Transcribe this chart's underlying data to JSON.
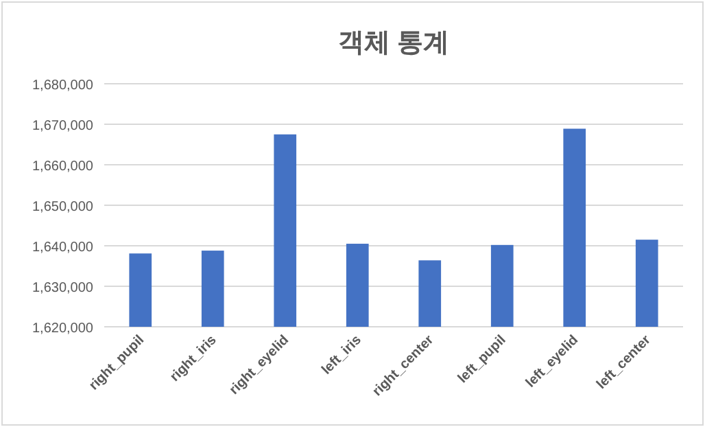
{
  "chart_data": {
    "type": "bar",
    "title": "객체 통계",
    "categories": [
      "right_pupil",
      "right_iris",
      "right_eyelid",
      "left_iris",
      "right_center",
      "left_pupil",
      "left_eyelid",
      "left_center"
    ],
    "values": [
      1638100,
      1638800,
      1667500,
      1640500,
      1636400,
      1640200,
      1668900,
      1641500
    ],
    "color": "#4472c4",
    "ylim": [
      1620000,
      1680000
    ],
    "yticks": [
      {
        "value": 1620000,
        "label": "1,620,000"
      },
      {
        "value": 1630000,
        "label": "1,630,000"
      },
      {
        "value": 1640000,
        "label": "1,640,000"
      },
      {
        "value": 1650000,
        "label": "1,650,000"
      },
      {
        "value": 1660000,
        "label": "1,660,000"
      },
      {
        "value": 1670000,
        "label": "1,670,000"
      },
      {
        "value": 1680000,
        "label": "1,680,000"
      }
    ],
    "grid": "y"
  }
}
